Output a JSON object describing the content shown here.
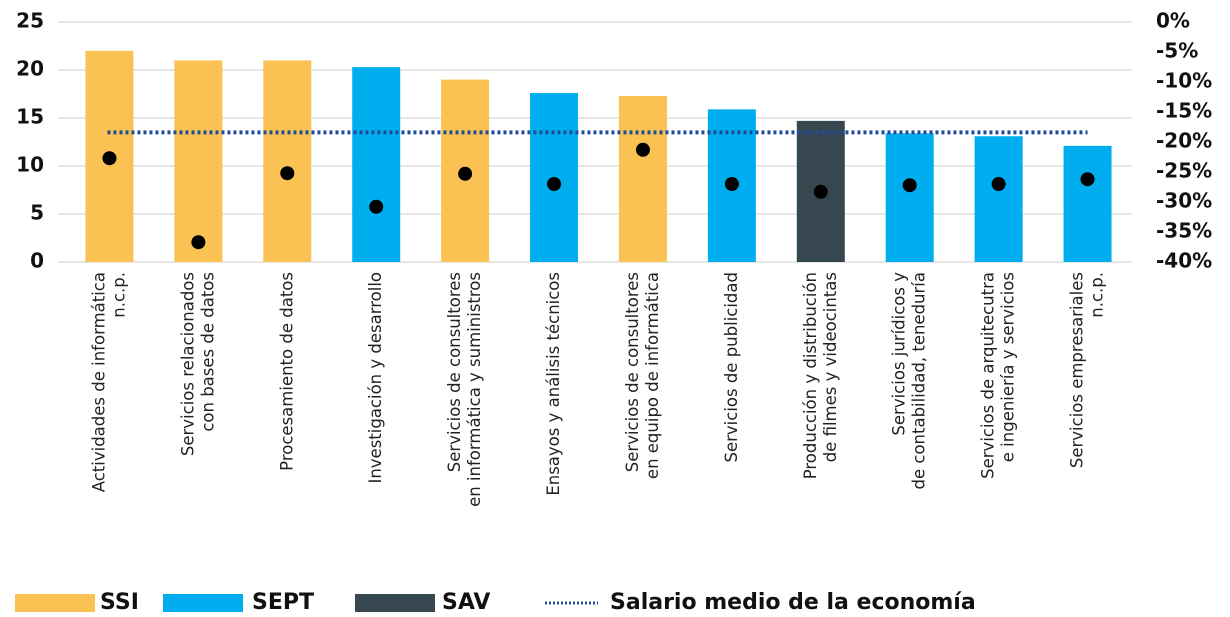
{
  "chart_data": {
    "type": "bar",
    "categories": [
      [
        "Actividades de informática",
        "n.c.p."
      ],
      [
        "Servicios relacionados",
        "con bases de datos"
      ],
      [
        "Procesamiento de datos"
      ],
      [
        "Investigación y desarrollo"
      ],
      [
        "Servicios de consultores",
        "en informática y suministros"
      ],
      [
        "Ensayos y análisis técnicos"
      ],
      [
        "Servicios de consultores",
        "en equipo de informática"
      ],
      [
        "Servicios de publicidad"
      ],
      [
        "Producción y distribución",
        "de filmes y videocintas"
      ],
      [
        "Servicios jurídicos y",
        "de contabilidad, teneduría"
      ],
      [
        "Servicios de arquitecutra",
        "e ingeniería y servicios"
      ],
      [
        "Servicios empresariales",
        "n.c.p."
      ]
    ],
    "values": [
      22,
      21,
      21,
      20.3,
      19,
      17.6,
      17.3,
      15.9,
      14.7,
      13.4,
      13.1,
      12.1
    ],
    "bar_group": [
      0,
      0,
      0,
      1,
      0,
      1,
      0,
      1,
      2,
      1,
      1,
      1
    ],
    "groups": [
      {
        "name": "SSI",
        "color": "#f9c253"
      },
      {
        "name": "SEPT",
        "color": "#00aeef"
      },
      {
        "name": "SAV",
        "color": "#37474f"
      }
    ],
    "dots": {
      "color": "#000000",
      "axis": "y2",
      "values": [
        -22.7,
        -36.7,
        -25.2,
        -30.8,
        -25.3,
        -27,
        -21.3,
        -27,
        -28.3,
        -27.2,
        -27,
        -26.2
      ]
    },
    "reference_line": {
      "name": "Salario medio de la economía",
      "value": 13.5,
      "color": "#1f4e99"
    },
    "ylim": [
      0,
      25
    ],
    "yticks": [
      0,
      5,
      10,
      15,
      20,
      25
    ],
    "y2lim": [
      -40,
      0
    ],
    "y2ticks": [
      {
        "value": 0,
        "label": "0%"
      },
      {
        "value": -5,
        "label": "-5%"
      },
      {
        "value": -10,
        "label": "-10%"
      },
      {
        "value": -15,
        "label": "-15%"
      },
      {
        "value": -20,
        "label": "-20%"
      },
      {
        "value": -25,
        "label": "-25%"
      },
      {
        "value": -30,
        "label": "-30%"
      },
      {
        "value": -35,
        "label": "-35%"
      },
      {
        "value": -40,
        "label": "-40%"
      }
    ],
    "grid": true
  }
}
